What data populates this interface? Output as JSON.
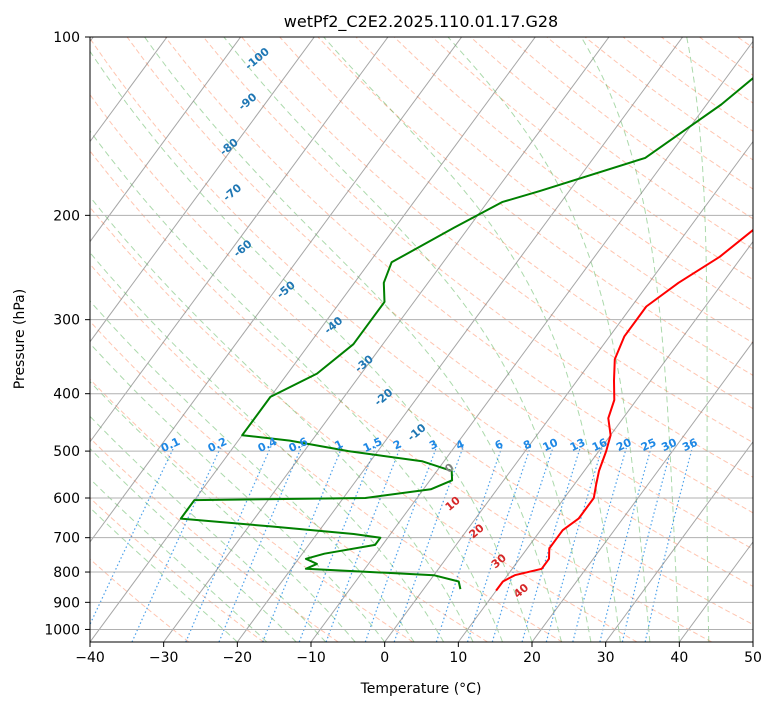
{
  "chart_data": {
    "type": "line",
    "title": "wetPf2_C2E2.2025.110.01.17.G28",
    "xlabel": "Temperature (°C)",
    "ylabel": "Pressure (hPa)",
    "xlim": [
      -40,
      50
    ],
    "ylim": [
      1050,
      100
    ],
    "y_scale": "log",
    "grid": true,
    "x_ticks": [
      -40,
      -30,
      -20,
      -10,
      0,
      10,
      20,
      30,
      40,
      50
    ],
    "x_tick_labels": [
      "−40",
      "−30",
      "−20",
      "−10",
      "0",
      "10",
      "20",
      "30",
      "40",
      "50"
    ],
    "y_ticks": [
      100,
      200,
      300,
      400,
      500,
      600,
      700,
      800,
      900,
      1000
    ],
    "y_tick_labels": [
      "100",
      "200",
      "300",
      "400",
      "500",
      "600",
      "700",
      "800",
      "900",
      "1000"
    ],
    "colors": {
      "temperature": "#ff0000",
      "dewpoint": "#008000",
      "dry_adiabat": "#ff7f50",
      "moist_adiabat": "#2ca02c",
      "mixing_ratio": "#1e88e5",
      "isotherm": "#808080",
      "moist_label": "#1f77b4",
      "warm_label": "#d62728"
    },
    "series": [
      {
        "role": "temperature",
        "points": [
          [
            13,
            100
          ],
          [
            12,
            110
          ],
          [
            10,
            130
          ],
          [
            10,
            160
          ],
          [
            10,
            190
          ],
          [
            9,
            210
          ],
          [
            7,
            235
          ],
          [
            4,
            260
          ],
          [
            2,
            285
          ],
          [
            2,
            320
          ],
          [
            3,
            350
          ],
          [
            5,
            380
          ],
          [
            7,
            410
          ],
          [
            8,
            440
          ],
          [
            10,
            470
          ],
          [
            11,
            500
          ],
          [
            12,
            540
          ],
          [
            13,
            570
          ],
          [
            14,
            600
          ],
          [
            14,
            630
          ],
          [
            14,
            650
          ],
          [
            13,
            680
          ],
          [
            13,
            700
          ],
          [
            13,
            730
          ],
          [
            14,
            760
          ],
          [
            14,
            790
          ],
          [
            11,
            810
          ],
          [
            10,
            830
          ],
          [
            10,
            860
          ]
        ]
      },
      {
        "role": "dewpoint",
        "points": [
          [
            -5,
            100
          ],
          [
            -6,
            115
          ],
          [
            -8,
            130
          ],
          [
            -13,
            160
          ],
          [
            -24,
            182
          ],
          [
            -28,
            190
          ],
          [
            -32,
            210
          ],
          [
            -37,
            240
          ],
          [
            -36,
            260
          ],
          [
            -34,
            280
          ],
          [
            -34,
            300
          ],
          [
            -34,
            330
          ],
          [
            -36,
            370
          ],
          [
            -40,
            405
          ],
          [
            -40,
            470
          ],
          [
            -33,
            480
          ],
          [
            -24,
            500
          ],
          [
            -13,
            520
          ],
          [
            -8,
            540
          ],
          [
            -7,
            560
          ],
          [
            -9,
            580
          ],
          [
            -17,
            600
          ],
          [
            -40,
            605
          ],
          [
            -40,
            650
          ],
          [
            -27,
            670
          ],
          [
            -15,
            690
          ],
          [
            -11,
            700
          ],
          [
            -11,
            720
          ],
          [
            -17,
            745
          ],
          [
            -19,
            760
          ],
          [
            -17,
            775
          ],
          [
            -18,
            790
          ],
          [
            -9,
            800
          ],
          [
            0,
            810
          ],
          [
            4,
            830
          ],
          [
            5,
            855
          ]
        ]
      }
    ],
    "moist_adiabat_labels": [
      "-100",
      "-90",
      "-80",
      "-70",
      "-60",
      "-50",
      "-40",
      "-30",
      "-20",
      "-10"
    ],
    "isotherm_labels": [
      "0"
    ],
    "warm_labels": [
      "10",
      "20",
      "30",
      "40"
    ],
    "mixing_ratio_labels": [
      "0.1",
      "0.2",
      "0.4",
      "0.6",
      "1",
      "1.5",
      "2",
      "3",
      "4",
      "6",
      "8",
      "10",
      "13",
      "16",
      "20",
      "25",
      "30",
      "36"
    ]
  }
}
